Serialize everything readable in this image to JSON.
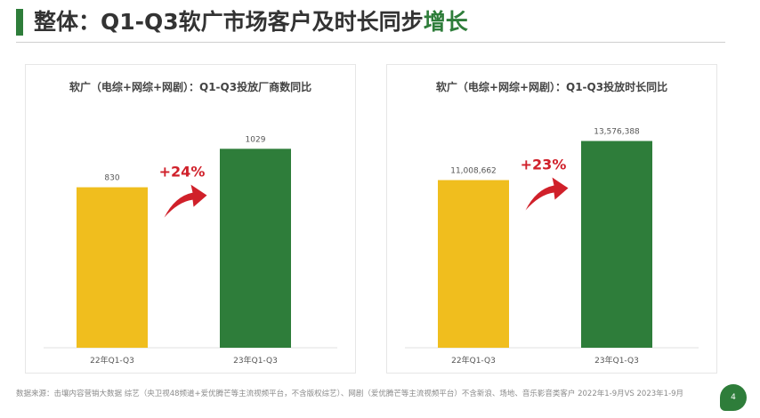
{
  "header": {
    "title_main": "整体：Q1-Q3软广市场客户及时长同步",
    "title_highlight": "增长"
  },
  "chart_data": [
    {
      "type": "bar",
      "title": "软广（电综+网综+网剧）：Q1-Q3投放厂商数同比",
      "categories": [
        "22年Q1-Q3",
        "23年Q1-Q3"
      ],
      "values": [
        830,
        1029
      ],
      "value_labels": [
        "830",
        "1029"
      ],
      "colors": [
        "#f0be1e",
        "#2e7d3a"
      ],
      "growth_label": "+24%",
      "growth_color": "#d0202a",
      "ylim": [
        0,
        1150
      ]
    },
    {
      "type": "bar",
      "title": "软广（电综+网综+网剧）：Q1-Q3投放时长同比",
      "categories": [
        "22年Q1-Q3",
        "23年Q1-Q3"
      ],
      "values": [
        11008662,
        13576388
      ],
      "value_labels": [
        "11,008,662",
        "13,576,388"
      ],
      "colors": [
        "#f0be1e",
        "#2e7d3a"
      ],
      "growth_label": "+23%",
      "growth_color": "#d0202a",
      "ylim": [
        0,
        14600000
      ]
    }
  ],
  "footer": {
    "source": "数据来源：击壤内容营销大数据 综艺（央卫视48频道+爱优腾芒等主流视频平台，不含版权综艺）、网剧（爱优腾芒等主流视频平台）不含新浪、场地、音乐影音类客户 2022年1-9月VS 2023年1-9月"
  },
  "page": {
    "number": "4"
  }
}
